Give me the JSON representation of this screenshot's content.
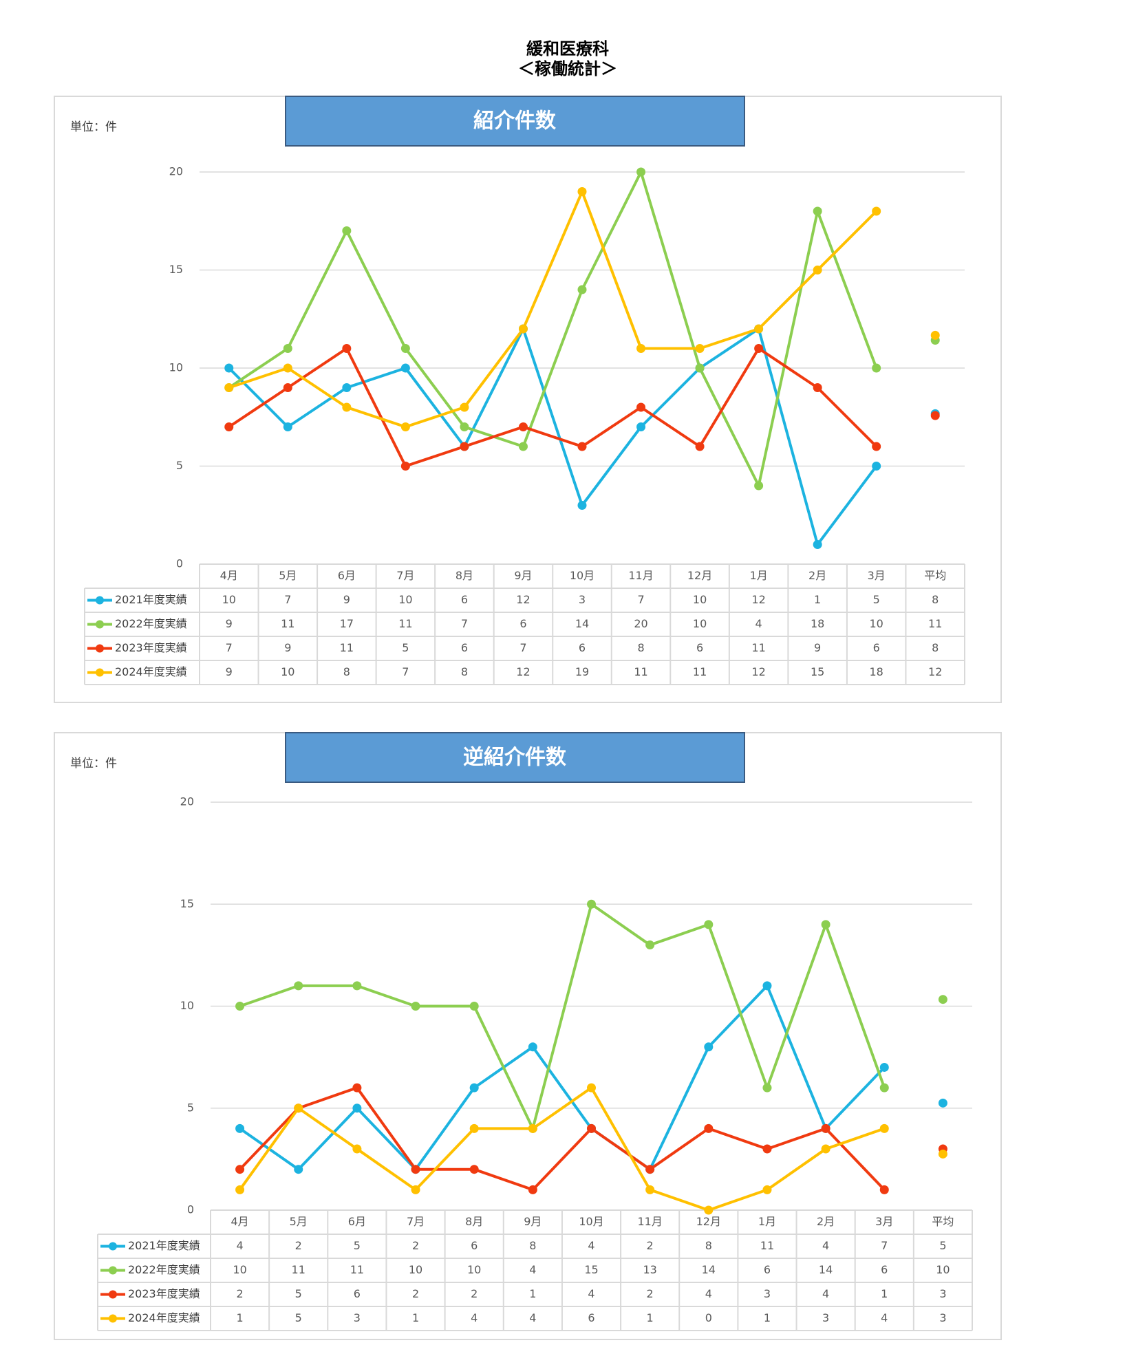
{
  "header": {
    "title": "緩和医療科",
    "subtitle": "＜稼働統計＞"
  },
  "chart_data": [
    {
      "type": "line",
      "title": "紹介件数",
      "unit_label": "単位：件",
      "categories": [
        "4月",
        "5月",
        "6月",
        "7月",
        "8月",
        "9月",
        "10月",
        "11月",
        "12月",
        "1月",
        "2月",
        "3月"
      ],
      "average_name": "平均",
      "ylim": [
        0,
        20
      ],
      "yticks": [
        0,
        5,
        10,
        15,
        20
      ],
      "grid": true,
      "series": [
        {
          "name": "2021年度実績",
          "color": "#1cb3e0",
          "values": [
            10,
            7,
            9,
            10,
            6,
            12,
            3,
            7,
            10,
            12,
            1,
            5
          ],
          "average": 7.67,
          "average_label": "8"
        },
        {
          "name": "2022年度実績",
          "color": "#8cce50",
          "values": [
            9,
            11,
            17,
            11,
            7,
            6,
            14,
            20,
            10,
            4,
            18,
            10
          ],
          "average": 11.42,
          "average_label": "11"
        },
        {
          "name": "2023年度実績",
          "color": "#f03a10",
          "values": [
            7,
            9,
            11,
            5,
            6,
            7,
            6,
            8,
            6,
            11,
            9,
            6
          ],
          "average": 7.58,
          "average_label": "8"
        },
        {
          "name": "2024年度実績",
          "color": "#ffc000",
          "values": [
            9,
            10,
            8,
            7,
            8,
            12,
            19,
            11,
            11,
            12,
            15,
            18
          ],
          "average": 11.67,
          "average_label": "12"
        }
      ]
    },
    {
      "type": "line",
      "title": "逆紹介件数",
      "unit_label": "単位：件",
      "categories": [
        "4月",
        "5月",
        "6月",
        "7月",
        "8月",
        "9月",
        "10月",
        "11月",
        "12月",
        "1月",
        "2月",
        "3月"
      ],
      "average_name": "平均",
      "ylim": [
        0,
        20
      ],
      "yticks": [
        0,
        5,
        10,
        15,
        20
      ],
      "grid": true,
      "series": [
        {
          "name": "2021年度実績",
          "color": "#1cb3e0",
          "values": [
            4,
            2,
            5,
            2,
            6,
            8,
            4,
            2,
            8,
            11,
            4,
            7
          ],
          "average": 5.25,
          "average_label": "5"
        },
        {
          "name": "2022年度実績",
          "color": "#8cce50",
          "values": [
            10,
            11,
            11,
            10,
            10,
            4,
            15,
            13,
            14,
            6,
            14,
            6
          ],
          "average": 10.33,
          "average_label": "10"
        },
        {
          "name": "2023年度実績",
          "color": "#f03a10",
          "values": [
            2,
            5,
            6,
            2,
            2,
            1,
            4,
            2,
            4,
            3,
            4,
            1
          ],
          "average": 3,
          "average_label": "3"
        },
        {
          "name": "2024年度実績",
          "color": "#ffc000",
          "values": [
            1,
            5,
            3,
            1,
            4,
            4,
            6,
            1,
            0,
            1,
            3,
            4
          ],
          "average": 2.75,
          "average_label": "3"
        }
      ]
    }
  ]
}
